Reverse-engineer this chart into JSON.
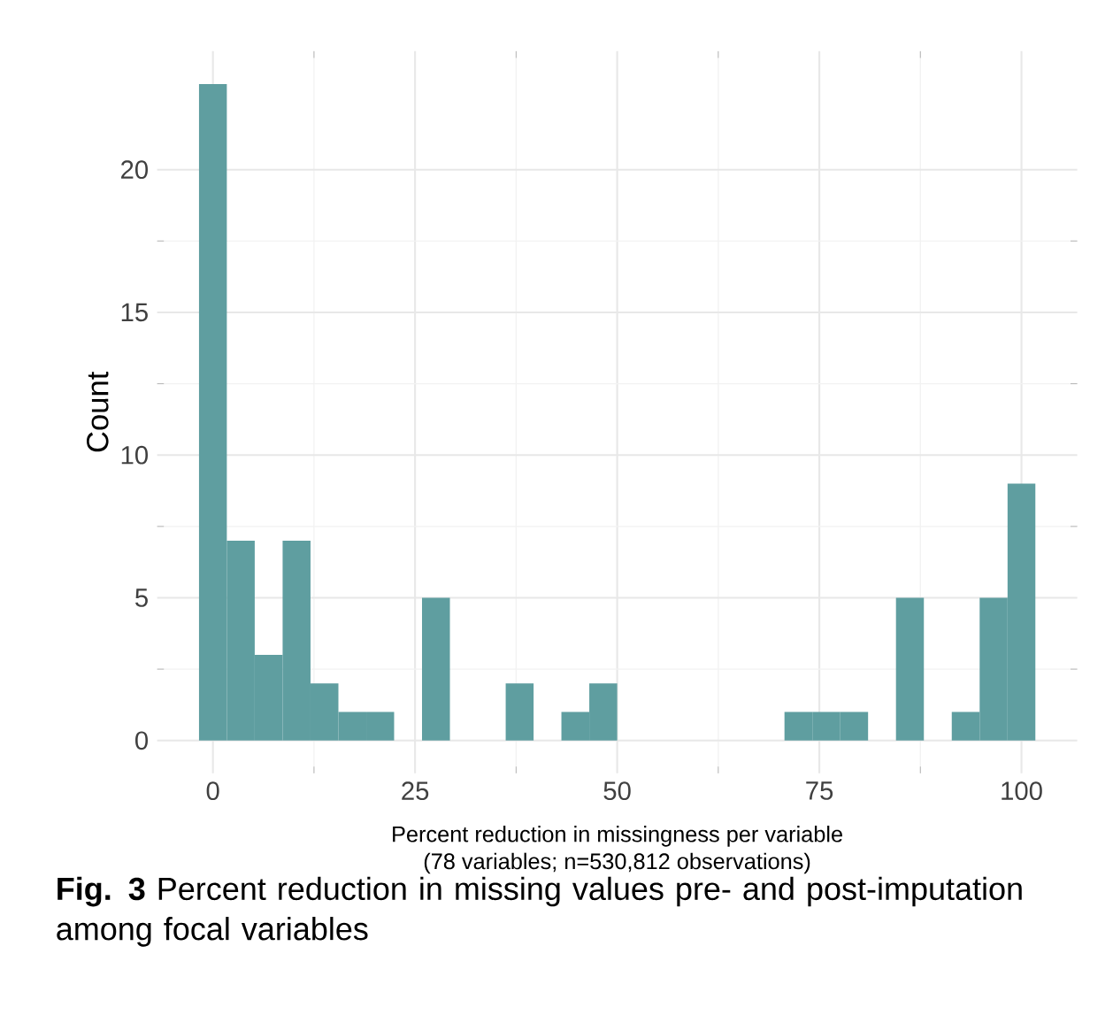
{
  "chart_data": {
    "type": "histogram",
    "bins": [
      -1.72,
      1.72,
      5.17,
      8.62,
      12.07,
      15.52,
      18.97,
      22.41,
      25.86,
      29.31,
      32.76,
      36.21,
      39.66,
      43.1,
      46.55,
      50.0,
      53.45,
      56.9,
      60.34,
      63.79,
      67.24,
      70.69,
      74.14,
      77.59,
      81.03,
      84.48,
      87.93,
      91.38,
      94.83,
      98.28,
      101.72
    ],
    "values": [
      23,
      7,
      3,
      7,
      2,
      1,
      1,
      0,
      5,
      0,
      0,
      2,
      0,
      1,
      2,
      0,
      0,
      0,
      0,
      0,
      0,
      1,
      1,
      1,
      0,
      5,
      0,
      1,
      5,
      9
    ],
    "color": "#5f9ea0",
    "xlabel": "Percent reduction in missingness per variable\n(78 variables; n=530,812 observations)",
    "ylabel": "Count",
    "xlim": [
      -6.9,
      106.9
    ],
    "ylim": [
      -1.15,
      24.15
    ],
    "xticks": [
      0,
      25,
      50,
      75,
      100
    ],
    "yticks": [
      0,
      5,
      10,
      15,
      20
    ],
    "grid": true,
    "annotations": [
      "**Fig. 3** Percent reduction in missing values pre- and post-imputation among focal variables"
    ]
  }
}
